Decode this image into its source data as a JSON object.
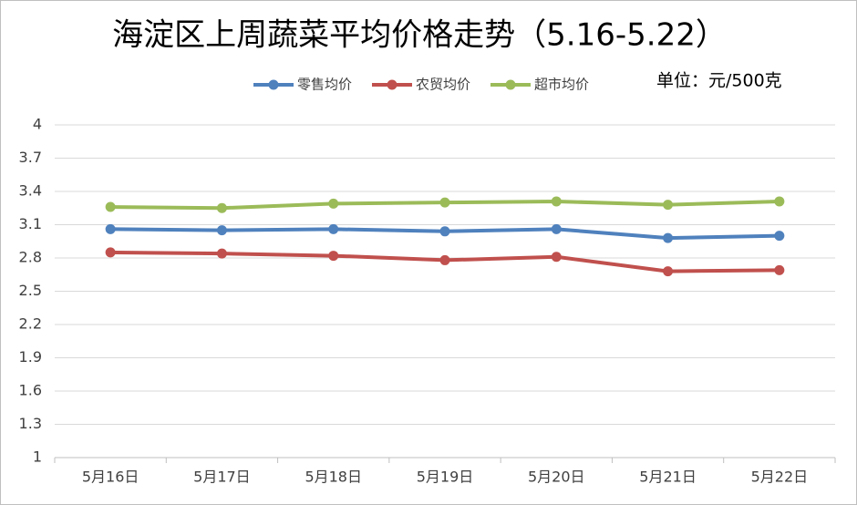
{
  "chart_data": {
    "type": "line",
    "title": "海淀区上周蔬菜平均价格走势（5.16-5.22）",
    "unit_note": "单位：元/500克",
    "categories": [
      "5月16日",
      "5月17日",
      "5月18日",
      "5月19日",
      "5月20日",
      "5月21日",
      "5月22日"
    ],
    "series": [
      {
        "name": "零售均价",
        "color": "#4f81bd",
        "values": [
          3.06,
          3.05,
          3.06,
          3.04,
          3.06,
          2.98,
          3.0
        ]
      },
      {
        "name": "农贸均价",
        "color": "#c0504d",
        "values": [
          2.85,
          2.84,
          2.82,
          2.78,
          2.81,
          2.68,
          2.69
        ]
      },
      {
        "name": "超市均价",
        "color": "#9bbb59",
        "values": [
          3.26,
          3.25,
          3.29,
          3.3,
          3.31,
          3.28,
          3.31
        ]
      }
    ],
    "ylim": [
      1,
      4
    ],
    "yticks": [
      1,
      1.3,
      1.6,
      1.9,
      2.2,
      2.5,
      2.8,
      3.1,
      3.4,
      3.7,
      4
    ],
    "grid": true,
    "legend": "top"
  }
}
